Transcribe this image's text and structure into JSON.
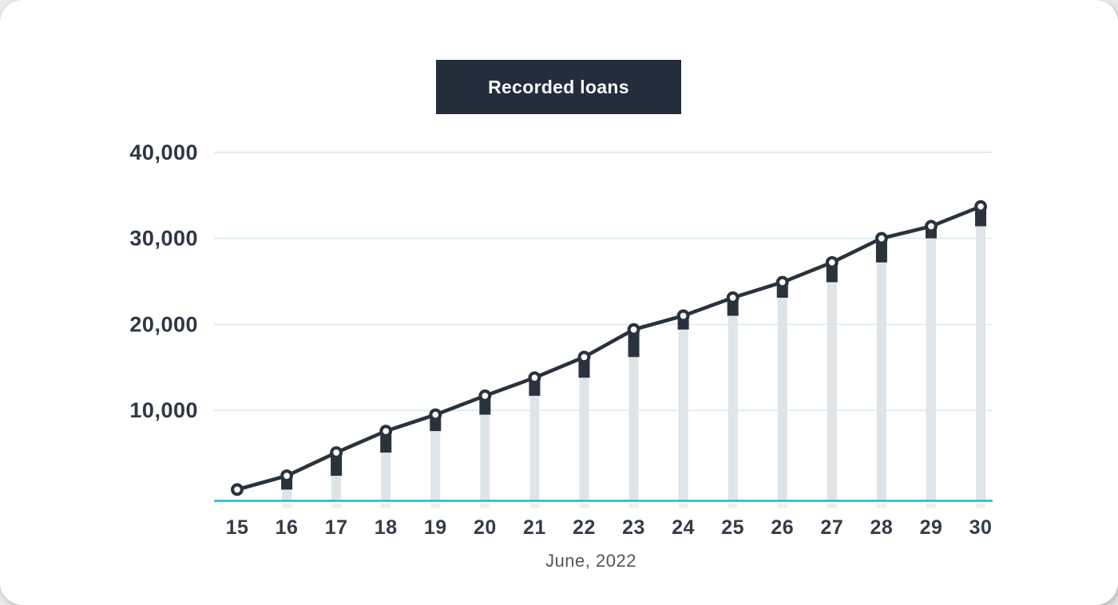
{
  "header": {
    "title": "Recorded loans"
  },
  "x_axis": {
    "label": "June, 2022"
  },
  "chart_data": {
    "type": "line",
    "subtype": "cumulative line with increment bars",
    "title": "Recorded loans",
    "xlabel": "June, 2022",
    "ylabel": "",
    "categories": [
      "15",
      "16",
      "17",
      "18",
      "19",
      "20",
      "21",
      "22",
      "23",
      "24",
      "25",
      "26",
      "27",
      "28",
      "29",
      "30"
    ],
    "values": [
      800,
      2400,
      5100,
      7600,
      9500,
      11700,
      13800,
      16200,
      19400,
      21000,
      23100,
      24900,
      27200,
      30000,
      31400,
      33700
    ],
    "previous_day_bar_values": [
      0,
      800,
      2400,
      5100,
      7600,
      9500,
      11700,
      13800,
      16200,
      19400,
      21000,
      23100,
      24900,
      27200,
      30000,
      31400
    ],
    "ylim": [
      0,
      40000
    ],
    "yticks": [
      10000,
      20000,
      30000,
      40000
    ],
    "ytick_labels": [
      "10,000",
      "20,000",
      "30,000",
      "40,000"
    ],
    "grid": true,
    "legend_position": "none",
    "marker": "open-circle",
    "colors": {
      "line": "#2a323e",
      "increment_bar": "#2a323e",
      "previous_bar": "#dee4e7",
      "gridline": "#d8ecf2",
      "baseline": "#3fc1d8",
      "ytick_text": "#2e3744",
      "xtick_text": "#333c48",
      "axis_title_text": "#4e5560",
      "badge_background": "#242d3b",
      "badge_text": "#fafbfc",
      "marker_fill": "#ffffff"
    }
  }
}
